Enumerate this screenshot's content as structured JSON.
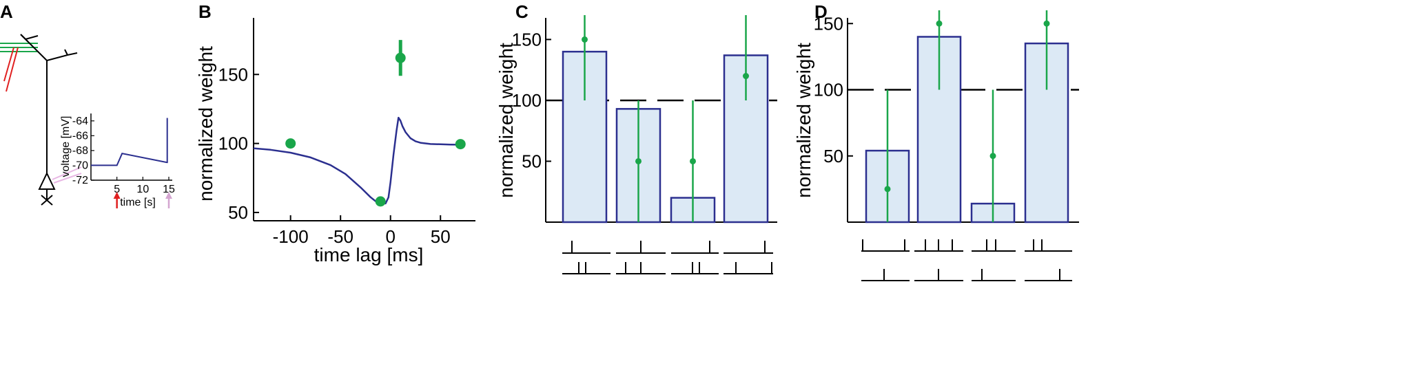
{
  "panel_labels": [
    "A",
    "B",
    "C",
    "D"
  ],
  "colors": {
    "curve": "#2b2f8f",
    "green": "#1aa64a",
    "bar_fill": "#dce9f5",
    "bar_edge": "#2b2f8f",
    "red": "#e02020",
    "pink": "#d4a5d0",
    "neuron": "#000000"
  },
  "chart_data": [
    {
      "panel": "A",
      "type": "line",
      "title": "",
      "xlabel": "time [s]",
      "ylabel": "voltage [mV]",
      "xlim": [
        0,
        15
      ],
      "ylim": [
        -72,
        -63
      ],
      "xticks": [
        5,
        10,
        15
      ],
      "yticks": [
        -64,
        -66,
        -68,
        -70,
        -72
      ],
      "series": [
        {
          "name": "membrane voltage",
          "x": [
            0,
            5,
            6,
            14.6,
            14.7,
            14.7
          ],
          "y": [
            -70,
            -70,
            -68.4,
            -69.6,
            -69.6,
            -63.6
          ]
        }
      ],
      "markers": [
        {
          "name": "red-arrow",
          "x": 5,
          "color": "red"
        },
        {
          "name": "pink-arrow",
          "x": 15,
          "color": "pink"
        }
      ]
    },
    {
      "panel": "B",
      "type": "line",
      "xlabel": "time lag [ms]",
      "ylabel": "normalized weight",
      "xlim": [
        -137,
        85
      ],
      "ylim": [
        40,
        190
      ],
      "xticks": [
        -100,
        -50,
        0,
        50
      ],
      "yticks": [
        50,
        100,
        150
      ],
      "series": [
        {
          "name": "model",
          "x": [
            -137,
            -120,
            -100,
            -80,
            -60,
            -45,
            -30,
            -20,
            -15,
            -10,
            -5,
            -2,
            0,
            3,
            6,
            8,
            10,
            12,
            15,
            20,
            25,
            30,
            40,
            50,
            60,
            70
          ],
          "y": [
            96.5,
            95.4,
            93.3,
            89.9,
            84.3,
            77.8,
            68.2,
            61.1,
            58.2,
            56.5,
            56.5,
            61,
            71.8,
            92,
            109,
            118.7,
            116.5,
            112.5,
            108.2,
            103.8,
            101.6,
            100.5,
            99.6,
            99.4,
            99.2,
            99.1
          ]
        }
      ],
      "points": [
        {
          "x": -100,
          "y": 100,
          "err": 0
        },
        {
          "x": -10,
          "y": 58,
          "err": 3
        },
        {
          "x": 10,
          "y": 162,
          "err": 13
        },
        {
          "x": 70,
          "y": 99.5,
          "err": 0
        }
      ]
    },
    {
      "panel": "C",
      "type": "bar",
      "ylabel": "normalized weight",
      "ylim": [
        0,
        170
      ],
      "yticks": [
        50,
        100,
        150
      ],
      "reference": 100,
      "bars": [
        140,
        93,
        20,
        137
      ],
      "points": [
        {
          "y": 150,
          "lo": 100,
          "hi": 170
        },
        {
          "y": 50,
          "lo": 0,
          "hi": 100
        },
        {
          "y": 50,
          "lo": 0,
          "hi": 100
        },
        {
          "y": 120,
          "lo": 100,
          "hi": 170
        }
      ]
    },
    {
      "panel": "D",
      "type": "bar",
      "ylabel": "normalized weight",
      "ylim": [
        0,
        160
      ],
      "yticks": [
        50,
        100,
        150
      ],
      "reference": 100,
      "bars": [
        54,
        140,
        14,
        135
      ],
      "points": [
        {
          "y": 25,
          "lo": 0,
          "hi": 100
        },
        {
          "y": 150,
          "lo": 100,
          "hi": 160
        },
        {
          "y": 50,
          "lo": 0,
          "hi": 100
        },
        {
          "y": 150,
          "lo": 100,
          "hi": 160
        }
      ]
    }
  ]
}
